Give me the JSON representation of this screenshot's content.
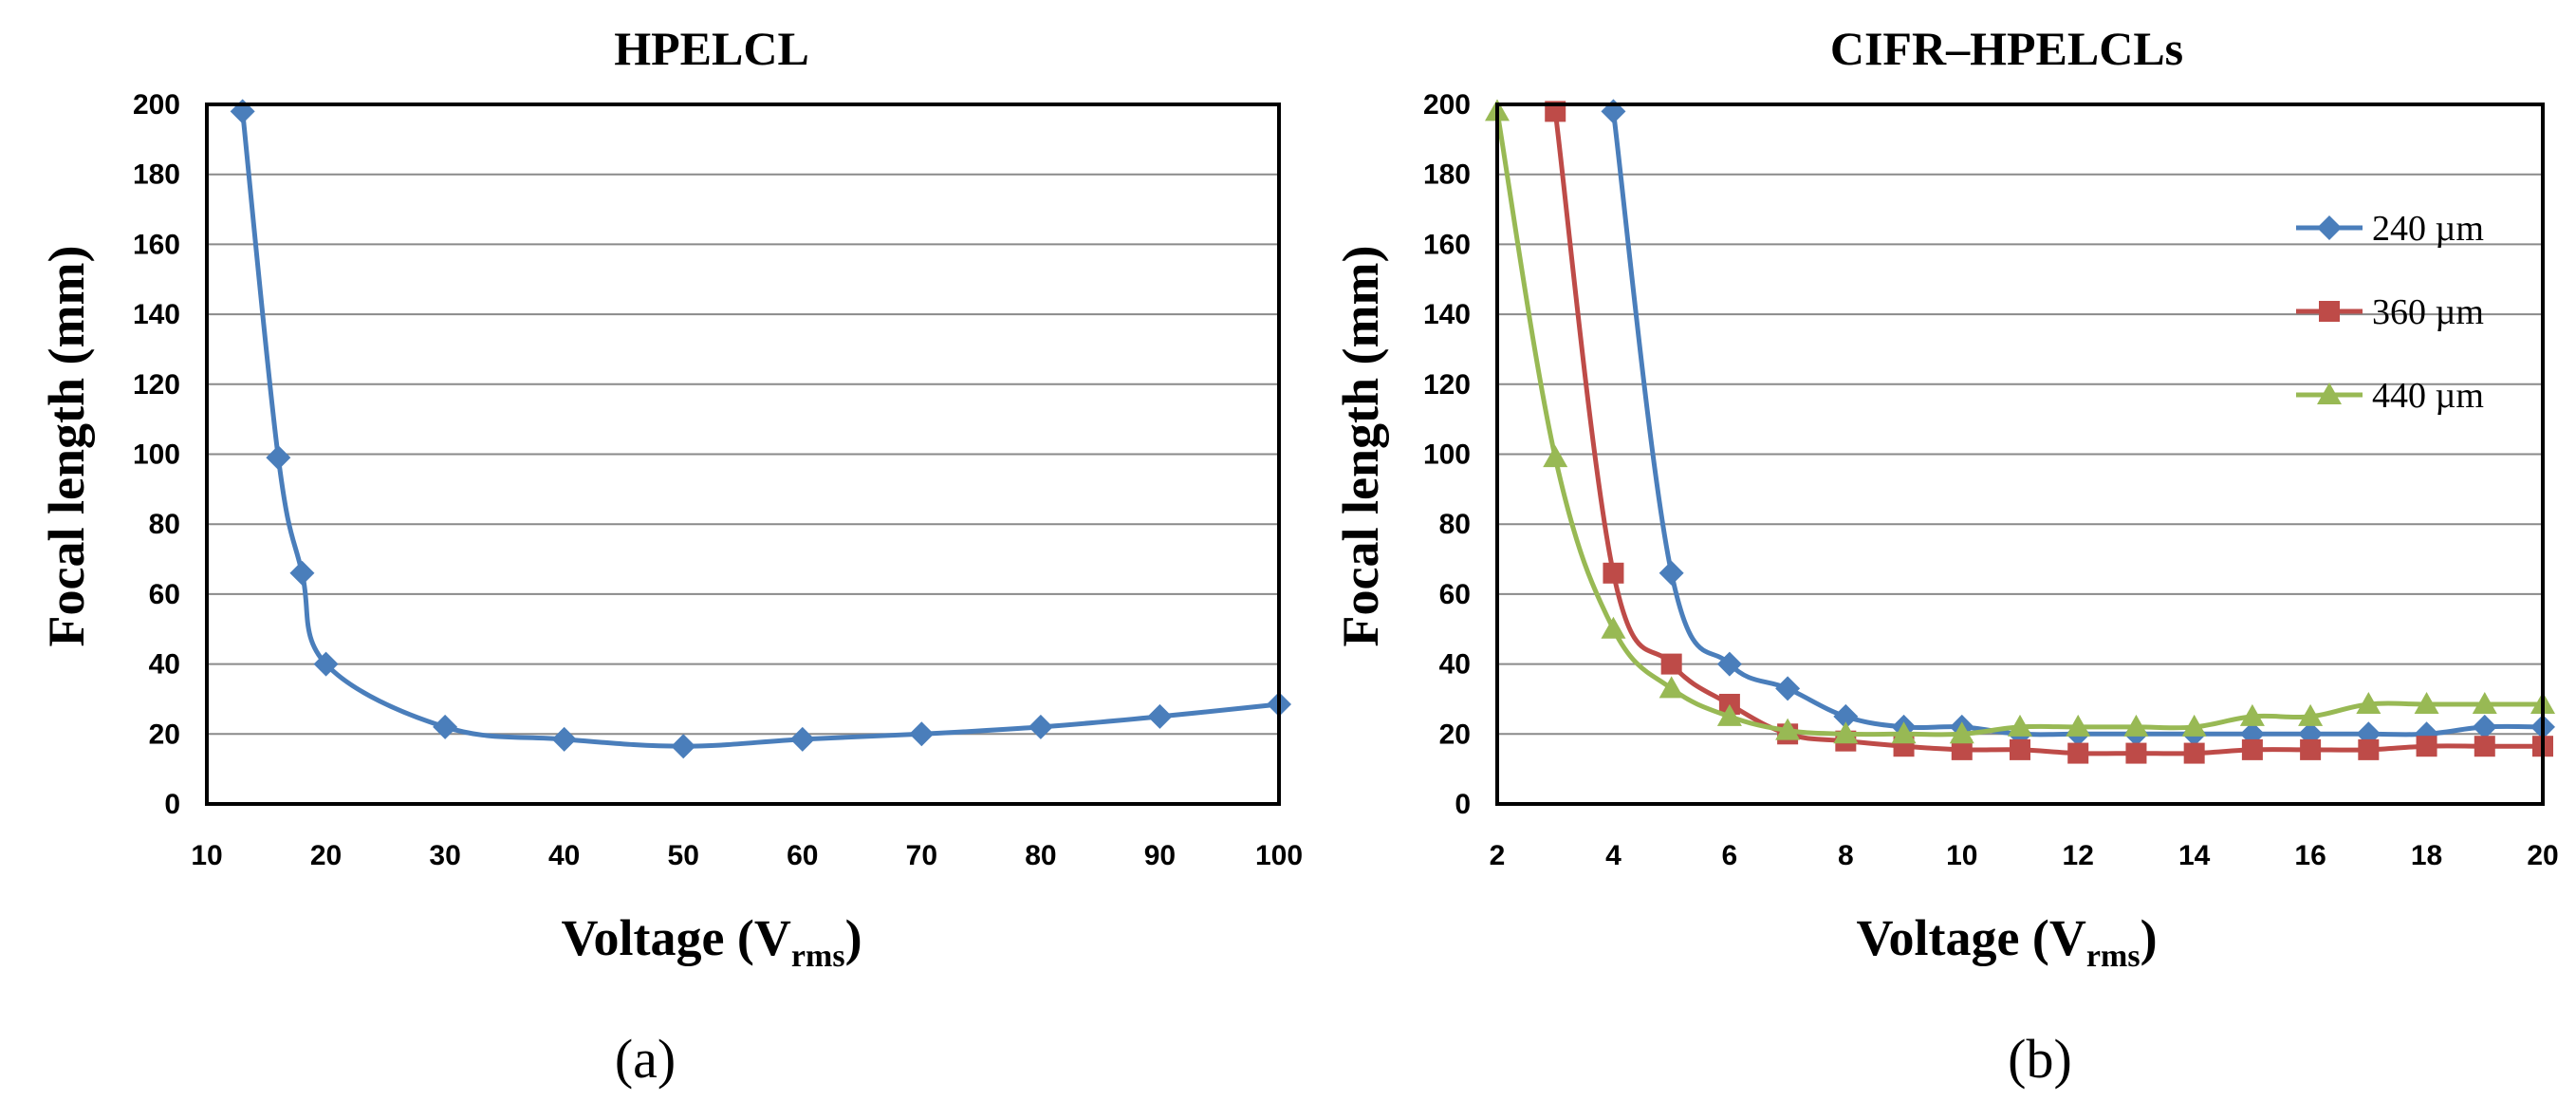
{
  "chart_data": [
    {
      "type": "line",
      "title": "HPELCL",
      "xlabel": "Voltage (V",
      "xlabel_sub": "rms",
      "xlabel_close": ")",
      "ylabel": "Focal length (mm)",
      "xlim": [
        10,
        100
      ],
      "ylim": [
        0,
        200
      ],
      "xticks": [
        10,
        20,
        30,
        40,
        50,
        60,
        70,
        80,
        90,
        100
      ],
      "yticks": [
        0,
        20,
        40,
        60,
        80,
        100,
        120,
        140,
        160,
        180,
        200
      ],
      "grid": true,
      "panel_label": "(a)",
      "series": [
        {
          "name": "HPELCL",
          "color": "#4a7ebb",
          "marker": "diamond",
          "x": [
            13,
            16,
            18,
            20,
            30,
            40,
            50,
            60,
            70,
            80,
            90,
            100
          ],
          "y": [
            198,
            99,
            66,
            40,
            22,
            18.5,
            16.5,
            18.5,
            20,
            22,
            25,
            28.5
          ]
        }
      ]
    },
    {
      "type": "line",
      "title": "CIFR–HPELCLs",
      "xlabel": "Voltage (V",
      "xlabel_sub": "rms",
      "xlabel_close": ")",
      "ylabel": "Focal length (mm)",
      "xlim": [
        2,
        20
      ],
      "ylim": [
        0,
        200
      ],
      "xticks": [
        2,
        4,
        6,
        8,
        10,
        12,
        14,
        16,
        18,
        20
      ],
      "yticks": [
        0,
        20,
        40,
        60,
        80,
        100,
        120,
        140,
        160,
        180,
        200
      ],
      "grid": true,
      "legend": "top-right",
      "panel_label": "(b)",
      "series": [
        {
          "name": "240 µm",
          "color": "#4a7ebb",
          "marker": "diamond",
          "x": [
            4,
            5,
            6,
            7,
            8,
            9,
            10,
            11,
            12,
            13,
            14,
            15,
            16,
            17,
            18,
            19,
            20
          ],
          "y": [
            198,
            66,
            40,
            33,
            25,
            22,
            22,
            20,
            20,
            20,
            20,
            20,
            20,
            20,
            20,
            22,
            22
          ]
        },
        {
          "name": "360 µm",
          "color": "#be4b48",
          "marker": "square",
          "x": [
            3,
            4,
            5,
            6,
            7,
            8,
            9,
            10,
            11,
            12,
            13,
            14,
            15,
            16,
            17,
            18,
            19,
            20
          ],
          "y": [
            198,
            66,
            40,
            28.5,
            20,
            18,
            16.5,
            15.5,
            15.5,
            14.5,
            14.5,
            14.5,
            15.5,
            15.5,
            15.5,
            16.5,
            16.5,
            16.5
          ]
        },
        {
          "name": "440 µm",
          "color": "#98b954",
          "marker": "triangle",
          "x": [
            2,
            3,
            4,
            5,
            6,
            7,
            8,
            9,
            10,
            11,
            12,
            13,
            14,
            15,
            16,
            17,
            18,
            19,
            20
          ],
          "y": [
            198,
            99,
            50,
            33,
            25,
            21,
            20,
            20,
            20,
            22,
            22,
            22,
            22,
            25,
            25,
            28.5,
            28.5,
            28.5,
            28.5
          ]
        }
      ]
    }
  ]
}
